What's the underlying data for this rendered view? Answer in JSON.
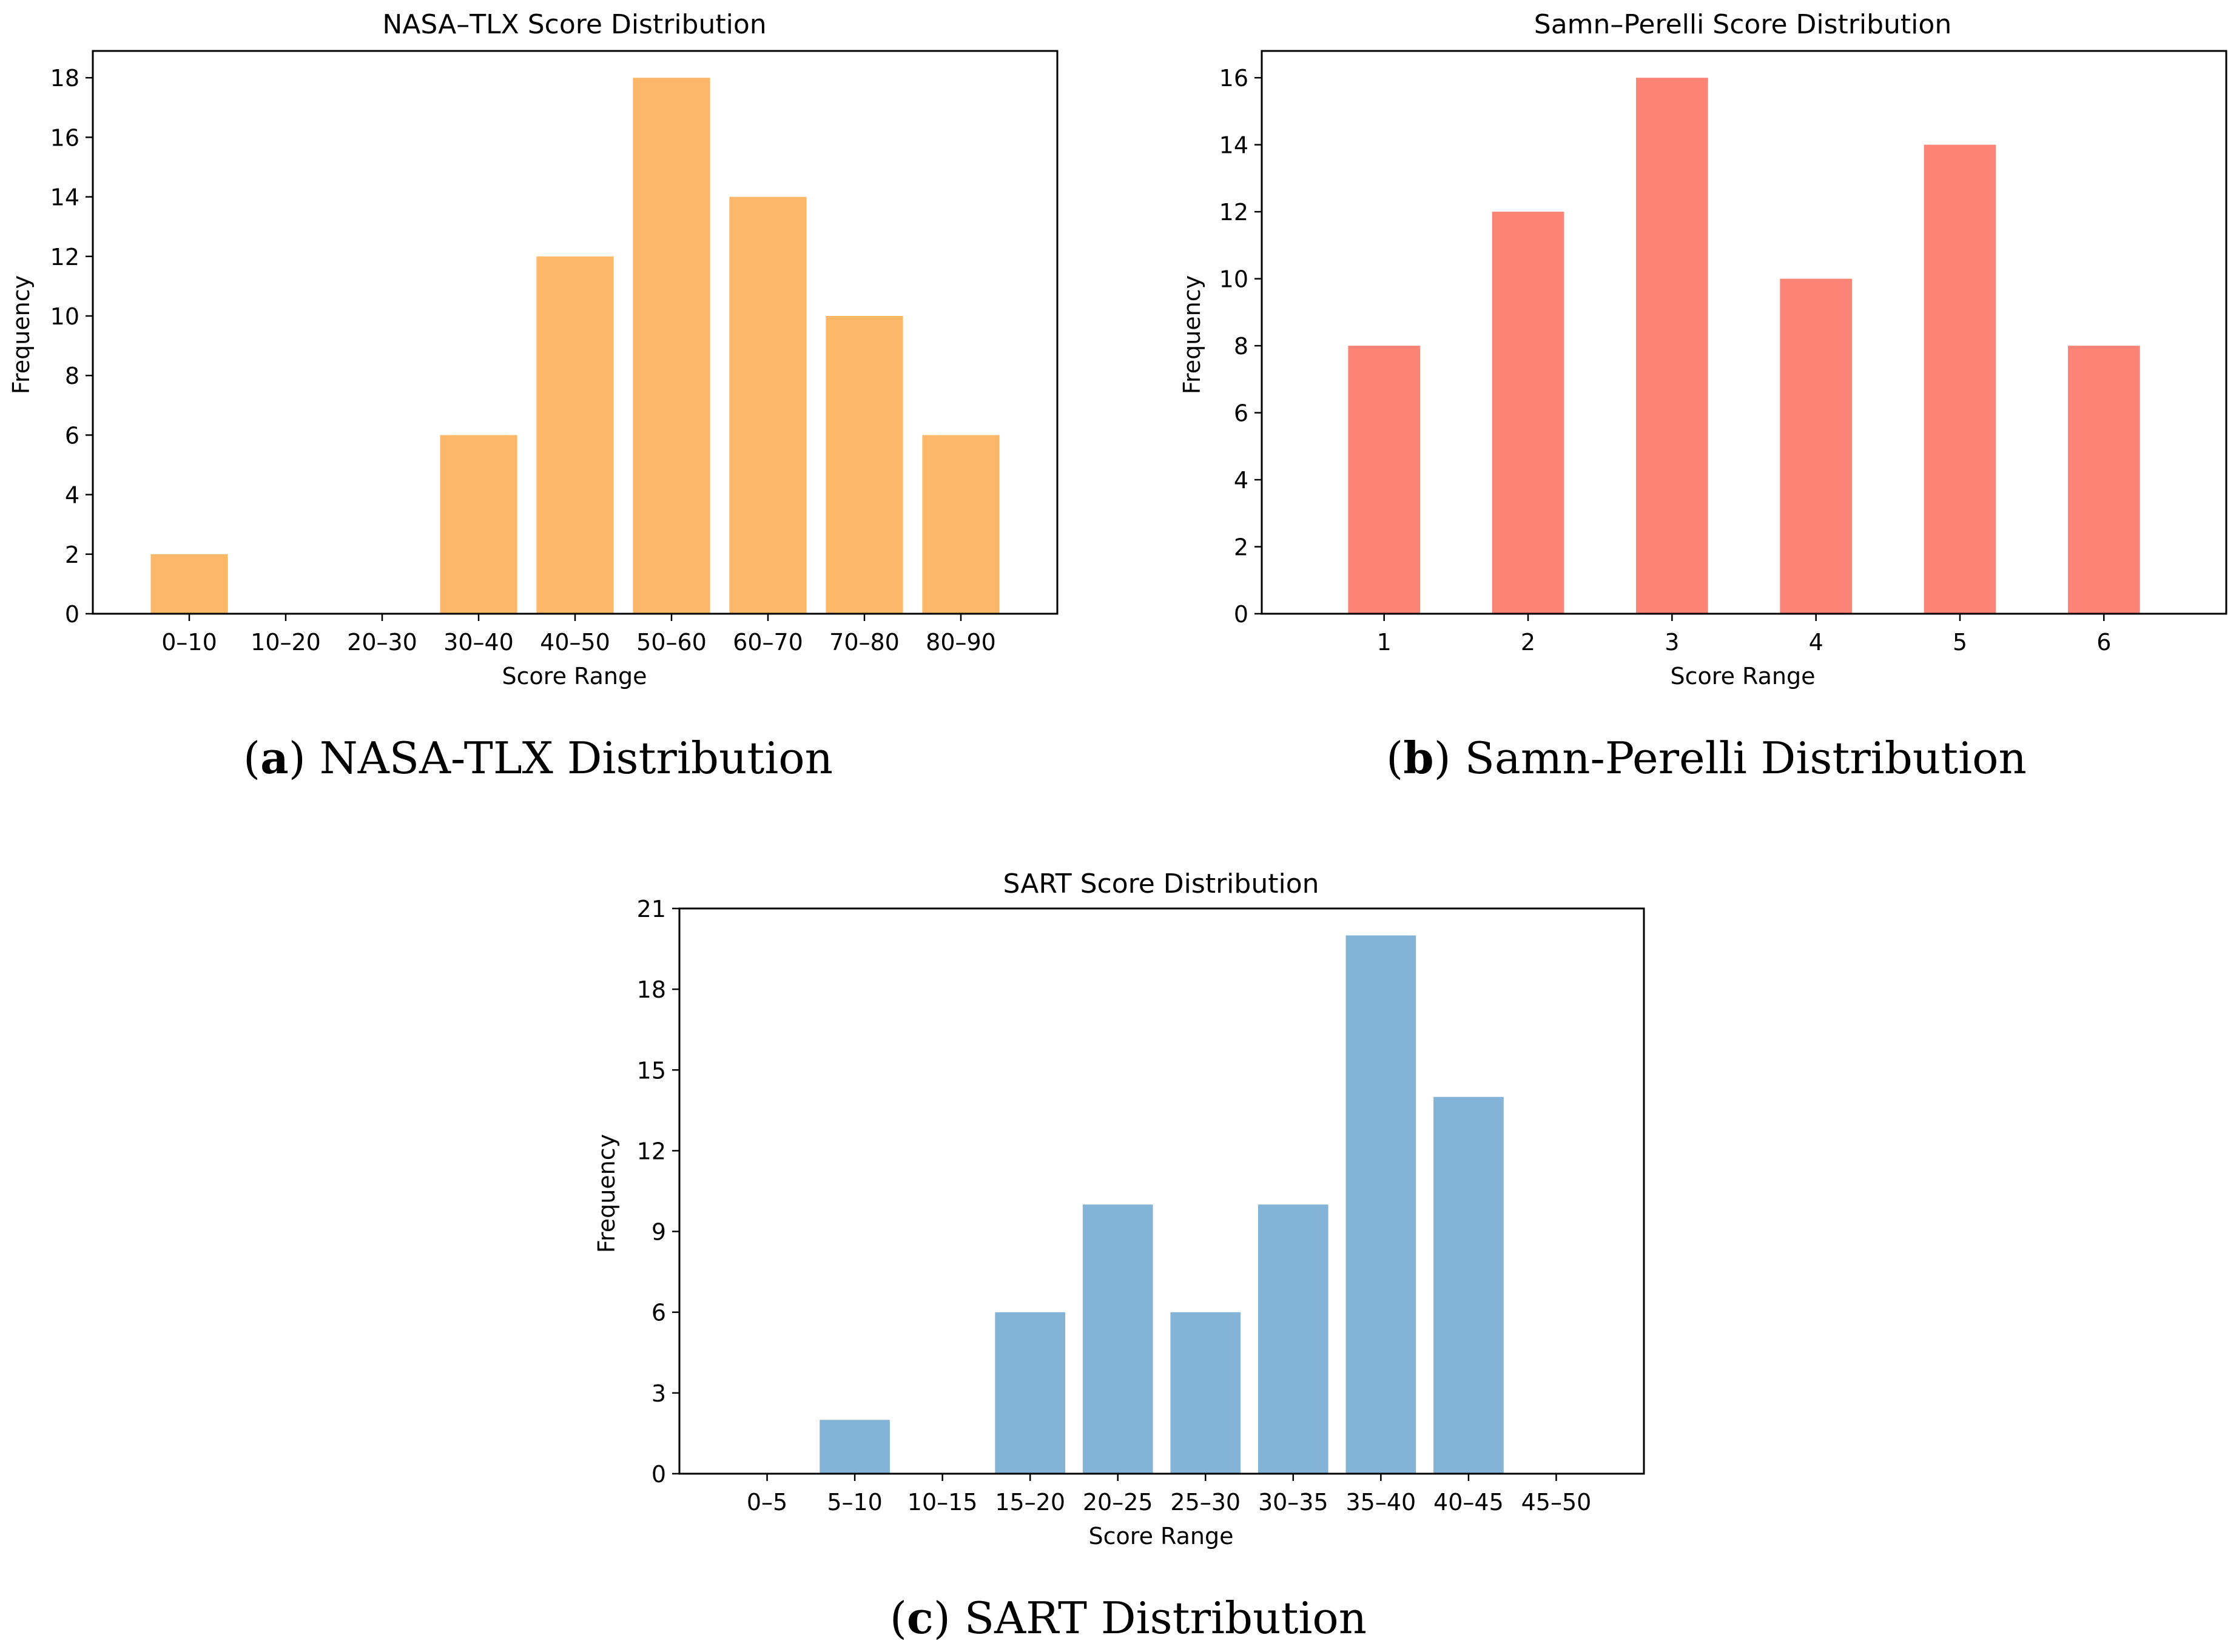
{
  "chart_data": [
    {
      "type": "bar",
      "title": "NASA–TLX Score Distribution",
      "xlabel": "Score Range",
      "ylabel": "Frequency",
      "categories": [
        "0–10",
        "10–20",
        "20–30",
        "30–40",
        "40–50",
        "50–60",
        "60–70",
        "70–80",
        "80–90"
      ],
      "values": [
        2,
        0,
        0,
        6,
        12,
        18,
        14,
        10,
        6
      ],
      "ylim": [
        0,
        18.9
      ],
      "yticks": [
        0,
        2,
        4,
        6,
        8,
        10,
        12,
        14,
        16,
        18
      ],
      "bar_width": 0.8,
      "color": "#FDB768",
      "grid": false,
      "caption": {
        "letter": "a",
        "text": "NASA-TLX Distribution"
      }
    },
    {
      "type": "bar",
      "title": "Samn–Perelli Score Distribution",
      "xlabel": "Score Range",
      "ylabel": "Frequency",
      "categories": [
        "1",
        "2",
        "3",
        "4",
        "5",
        "6"
      ],
      "values": [
        8,
        12,
        16,
        10,
        14,
        8
      ],
      "ylim": [
        0,
        16.8
      ],
      "yticks": [
        0,
        2,
        4,
        6,
        8,
        10,
        12,
        14,
        16
      ],
      "bar_width": 0.5,
      "color": "#FC8476",
      "grid": false,
      "caption": {
        "letter": "b",
        "text": "Samn-Perelli Distribution"
      }
    },
    {
      "type": "bar",
      "title": "SART Score Distribution",
      "xlabel": "Score Range",
      "ylabel": "Frequency",
      "categories": [
        "0–5",
        "5–10",
        "10–15",
        "15–20",
        "20–25",
        "25–30",
        "30–35",
        "35–40",
        "40–45",
        "45–50"
      ],
      "values": [
        0,
        2,
        0,
        6,
        10,
        6,
        10,
        20,
        14,
        0
      ],
      "ylim": [
        0,
        21
      ],
      "yticks": [
        0,
        3,
        6,
        9,
        12,
        15,
        18,
        21
      ],
      "bar_width": 0.8,
      "color": "#83B4D8",
      "grid": false,
      "caption": {
        "letter": "c",
        "text": "SART Distribution"
      }
    }
  ]
}
